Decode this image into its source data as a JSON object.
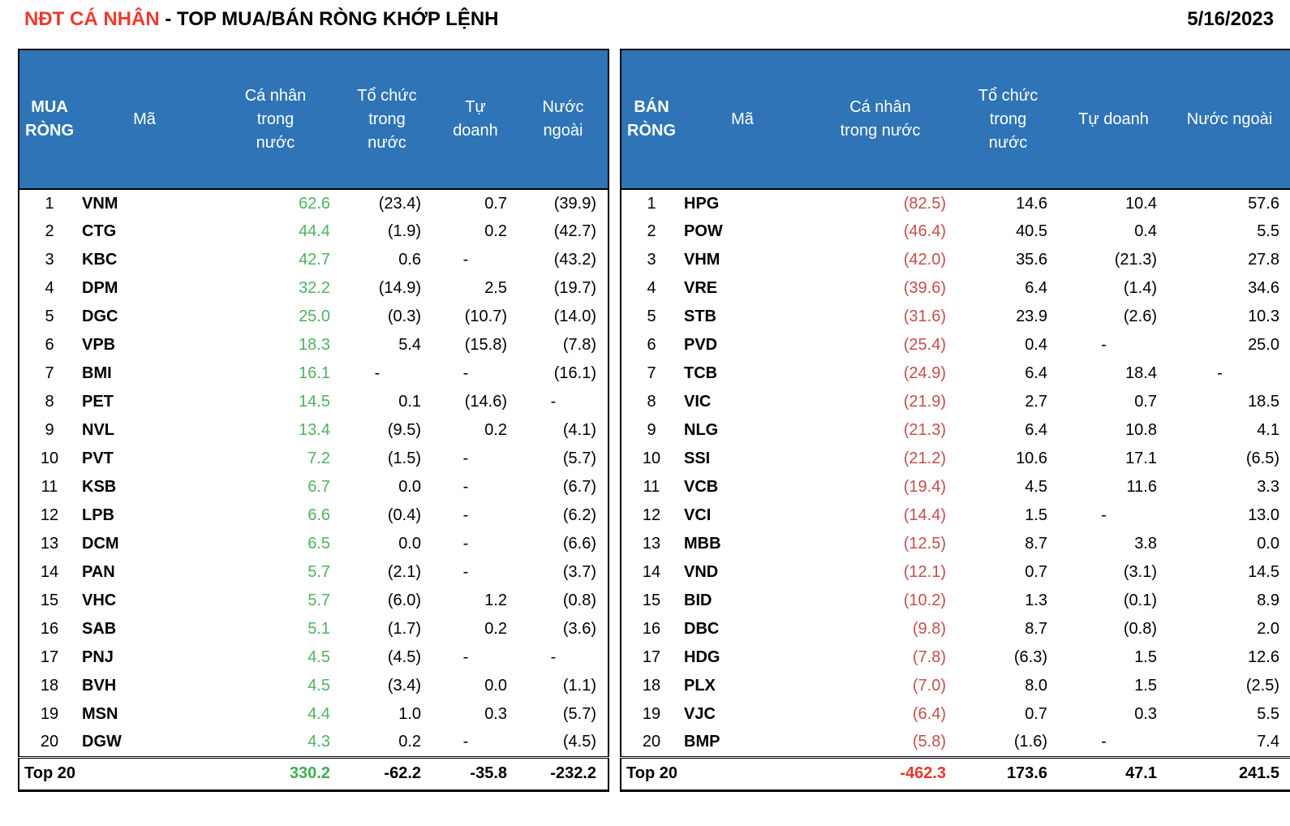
{
  "title": {
    "highlight": "NĐT CÁ NHÂN",
    "rest": " - TOP MUA/BÁN RÒNG KHỚP LỆNH",
    "date": "5/16/2023"
  },
  "colors": {
    "header_bg": "#2e74b6",
    "buy_value_green": "#4fb261",
    "sell_value_red": "#c0504d",
    "buy_total_green": "#3fae52",
    "sell_total_red": "#ea352b",
    "title_red": "#ee3a30"
  },
  "chart_data": [
    {
      "type": "table",
      "name": "buy",
      "group_label": "MUA RÒNG",
      "headers": {
        "ticker": "Mã",
        "individual": "Cá nhân trong nước",
        "institution": "Tổ chức trong nước",
        "proprietary": "Tự doanh",
        "foreign": "Nước ngoài"
      },
      "rows": [
        {
          "rank": "1",
          "ticker": "VNM",
          "individual": "62.6",
          "institution": "(23.4)",
          "proprietary": "0.7",
          "foreign": "(39.9)"
        },
        {
          "rank": "2",
          "ticker": "CTG",
          "individual": "44.4",
          "institution": "(1.9)",
          "proprietary": "0.2",
          "foreign": "(42.7)"
        },
        {
          "rank": "3",
          "ticker": "KBC",
          "individual": "42.7",
          "institution": "0.6",
          "proprietary": "-",
          "foreign": "(43.2)"
        },
        {
          "rank": "4",
          "ticker": "DPM",
          "individual": "32.2",
          "institution": "(14.9)",
          "proprietary": "2.5",
          "foreign": "(19.7)"
        },
        {
          "rank": "5",
          "ticker": "DGC",
          "individual": "25.0",
          "institution": "(0.3)",
          "proprietary": "(10.7)",
          "foreign": "(14.0)"
        },
        {
          "rank": "6",
          "ticker": "VPB",
          "individual": "18.3",
          "institution": "5.4",
          "proprietary": "(15.8)",
          "foreign": "(7.8)"
        },
        {
          "rank": "7",
          "ticker": "BMI",
          "individual": "16.1",
          "institution": "-",
          "proprietary": "-",
          "foreign": "(16.1)"
        },
        {
          "rank": "8",
          "ticker": "PET",
          "individual": "14.5",
          "institution": "0.1",
          "proprietary": "(14.6)",
          "foreign": "-"
        },
        {
          "rank": "9",
          "ticker": "NVL",
          "individual": "13.4",
          "institution": "(9.5)",
          "proprietary": "0.2",
          "foreign": "(4.1)"
        },
        {
          "rank": "10",
          "ticker": "PVT",
          "individual": "7.2",
          "institution": "(1.5)",
          "proprietary": "-",
          "foreign": "(5.7)"
        },
        {
          "rank": "11",
          "ticker": "KSB",
          "individual": "6.7",
          "institution": "0.0",
          "proprietary": "-",
          "foreign": "(6.7)"
        },
        {
          "rank": "12",
          "ticker": "LPB",
          "individual": "6.6",
          "institution": "(0.4)",
          "proprietary": "-",
          "foreign": "(6.2)"
        },
        {
          "rank": "13",
          "ticker": "DCM",
          "individual": "6.5",
          "institution": "0.0",
          "proprietary": "-",
          "foreign": "(6.6)"
        },
        {
          "rank": "14",
          "ticker": "PAN",
          "individual": "5.7",
          "institution": "(2.1)",
          "proprietary": "-",
          "foreign": "(3.7)"
        },
        {
          "rank": "15",
          "ticker": "VHC",
          "individual": "5.7",
          "institution": "(6.0)",
          "proprietary": "1.2",
          "foreign": "(0.8)"
        },
        {
          "rank": "16",
          "ticker": "SAB",
          "individual": "5.1",
          "institution": "(1.7)",
          "proprietary": "0.2",
          "foreign": "(3.6)"
        },
        {
          "rank": "17",
          "ticker": "PNJ",
          "individual": "4.5",
          "institution": "(4.5)",
          "proprietary": "-",
          "foreign": "-"
        },
        {
          "rank": "18",
          "ticker": "BVH",
          "individual": "4.5",
          "institution": "(3.4)",
          "proprietary": "0.0",
          "foreign": "(1.1)"
        },
        {
          "rank": "19",
          "ticker": "MSN",
          "individual": "4.4",
          "institution": "1.0",
          "proprietary": "0.3",
          "foreign": "(5.7)"
        },
        {
          "rank": "20",
          "ticker": "DGW",
          "individual": "4.3",
          "institution": "0.2",
          "proprietary": "-",
          "foreign": "(4.5)"
        }
      ],
      "total": {
        "label": "Top 20",
        "individual": "330.2",
        "institution": "-62.2",
        "proprietary": "-35.8",
        "foreign": "-232.2"
      }
    },
    {
      "type": "table",
      "name": "sell",
      "group_label": "BÁN RÒNG",
      "headers": {
        "ticker": "Mã",
        "individual": "Cá nhân trong nước",
        "institution": "Tổ chức trong nước",
        "proprietary": "Tự doanh",
        "foreign": "Nước ngoài"
      },
      "rows": [
        {
          "rank": "1",
          "ticker": "HPG",
          "individual": "(82.5)",
          "institution": "14.6",
          "proprietary": "10.4",
          "foreign": "57.6"
        },
        {
          "rank": "2",
          "ticker": "POW",
          "individual": "(46.4)",
          "institution": "40.5",
          "proprietary": "0.4",
          "foreign": "5.5"
        },
        {
          "rank": "3",
          "ticker": "VHM",
          "individual": "(42.0)",
          "institution": "35.6",
          "proprietary": "(21.3)",
          "foreign": "27.8"
        },
        {
          "rank": "4",
          "ticker": "VRE",
          "individual": "(39.6)",
          "institution": "6.4",
          "proprietary": "(1.4)",
          "foreign": "34.6"
        },
        {
          "rank": "5",
          "ticker": "STB",
          "individual": "(31.6)",
          "institution": "23.9",
          "proprietary": "(2.6)",
          "foreign": "10.3"
        },
        {
          "rank": "6",
          "ticker": "PVD",
          "individual": "(25.4)",
          "institution": "0.4",
          "proprietary": "-",
          "foreign": "25.0"
        },
        {
          "rank": "7",
          "ticker": "TCB",
          "individual": "(24.9)",
          "institution": "6.4",
          "proprietary": "18.4",
          "foreign": "-"
        },
        {
          "rank": "8",
          "ticker": "VIC",
          "individual": "(21.9)",
          "institution": "2.7",
          "proprietary": "0.7",
          "foreign": "18.5"
        },
        {
          "rank": "9",
          "ticker": "NLG",
          "individual": "(21.3)",
          "institution": "6.4",
          "proprietary": "10.8",
          "foreign": "4.1"
        },
        {
          "rank": "10",
          "ticker": "SSI",
          "individual": "(21.2)",
          "institution": "10.6",
          "proprietary": "17.1",
          "foreign": "(6.5)"
        },
        {
          "rank": "11",
          "ticker": "VCB",
          "individual": "(19.4)",
          "institution": "4.5",
          "proprietary": "11.6",
          "foreign": "3.3"
        },
        {
          "rank": "12",
          "ticker": "VCI",
          "individual": "(14.4)",
          "institution": "1.5",
          "proprietary": "-",
          "foreign": "13.0"
        },
        {
          "rank": "13",
          "ticker": "MBB",
          "individual": "(12.5)",
          "institution": "8.7",
          "proprietary": "3.8",
          "foreign": "0.0"
        },
        {
          "rank": "14",
          "ticker": "VND",
          "individual": "(12.1)",
          "institution": "0.7",
          "proprietary": "(3.1)",
          "foreign": "14.5"
        },
        {
          "rank": "15",
          "ticker": "BID",
          "individual": "(10.2)",
          "institution": "1.3",
          "proprietary": "(0.1)",
          "foreign": "8.9"
        },
        {
          "rank": "16",
          "ticker": "DBC",
          "individual": "(9.8)",
          "institution": "8.7",
          "proprietary": "(0.8)",
          "foreign": "2.0"
        },
        {
          "rank": "17",
          "ticker": "HDG",
          "individual": "(7.8)",
          "institution": "(6.3)",
          "proprietary": "1.5",
          "foreign": "12.6"
        },
        {
          "rank": "18",
          "ticker": "PLX",
          "individual": "(7.0)",
          "institution": "8.0",
          "proprietary": "1.5",
          "foreign": "(2.5)"
        },
        {
          "rank": "19",
          "ticker": "VJC",
          "individual": "(6.4)",
          "institution": "0.7",
          "proprietary": "0.3",
          "foreign": "5.5"
        },
        {
          "rank": "20",
          "ticker": "BMP",
          "individual": "(5.8)",
          "institution": "(1.6)",
          "proprietary": "-",
          "foreign": "7.4"
        }
      ],
      "total": {
        "label": "Top 20",
        "individual": "-462.3",
        "institution": "173.6",
        "proprietary": "47.1",
        "foreign": "241.5"
      }
    }
  ]
}
